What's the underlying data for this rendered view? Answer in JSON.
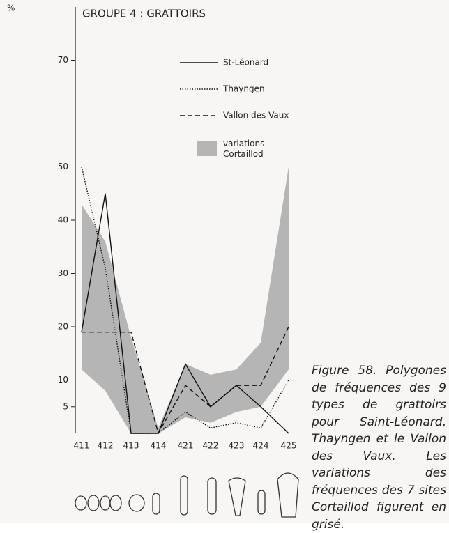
{
  "chart_data": {
    "type": "line",
    "title": "GROUPE 4 : GRATTOIRS",
    "y_label": "%",
    "categories": [
      "411",
      "412",
      "413",
      "414",
      "421",
      "422",
      "423",
      "424",
      "425"
    ],
    "series": [
      {
        "name": "St-Léonard",
        "color": "#111",
        "dash": "none",
        "values": [
          19,
          45,
          0,
          0,
          13,
          5,
          9,
          5,
          0
        ]
      },
      {
        "name": "Thayngen",
        "color": "#111",
        "dash": "1.5 2",
        "values": [
          50,
          31,
          0,
          0,
          4,
          1,
          2,
          1,
          10
        ]
      },
      {
        "name": "Vallon des Vaux",
        "color": "#111",
        "dash": "7 4",
        "values": [
          19,
          19,
          19,
          0,
          9,
          5,
          9,
          9,
          20
        ]
      }
    ],
    "band": {
      "name": "variations Cortaillod",
      "color": "#b5b5b5",
      "high": [
        43,
        36,
        18,
        1,
        13,
        11,
        12,
        17,
        50
      ],
      "low": [
        12,
        8,
        0,
        0,
        3,
        2,
        4,
        5,
        12
      ]
    },
    "ylim": [
      0,
      80
    ],
    "yticks": [
      5,
      10,
      20,
      30,
      40,
      50,
      70
    ]
  },
  "caption": "Figure 58. Polygones de fréquences des 9 types de grattoirs pour Saint-Léonard, Thayngen et le Vallon des Vaux. Les variations des fréquences des 7 sites Cortaillod figurent en grisé."
}
